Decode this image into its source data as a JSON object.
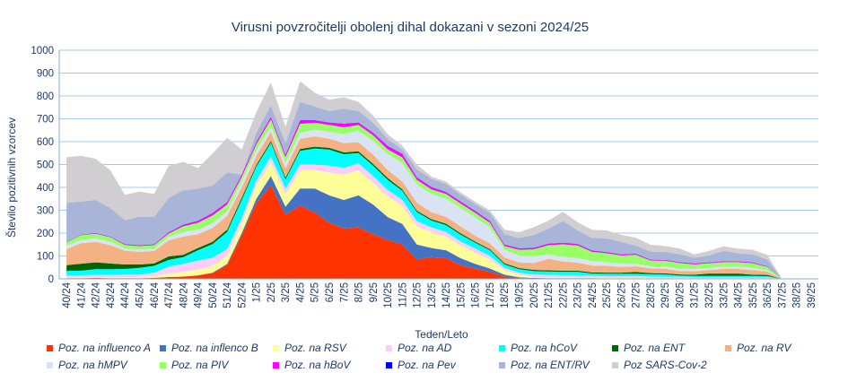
{
  "chart_data": {
    "type": "area",
    "stacked": true,
    "title": "Virusni povzročitelji  obolenj dihal dokazani v sezoni 2024/25",
    "xlabel": "Teden/Leto",
    "ylabel": "Število pozitivnih vzorcev",
    "ylim": [
      0,
      1000
    ],
    "yticks": [
      0,
      100,
      200,
      300,
      400,
      500,
      600,
      700,
      800,
      900,
      1000
    ],
    "grid": true,
    "legend_position": "bottom",
    "categories": [
      "40/24",
      "41/24",
      "42/24",
      "43/24",
      "44/24",
      "45/24",
      "46/24",
      "47/24",
      "48/24",
      "49/24",
      "50/24",
      "51/24",
      "52/24",
      "1/25",
      "2/25",
      "3/25",
      "4/25",
      "5/25",
      "6/25",
      "7/25",
      "8/25",
      "9/25",
      "10/25",
      "11/25",
      "12/25",
      "13/25",
      "14/25",
      "15/25",
      "16/25",
      "17/25",
      "18/25",
      "19/25",
      "20/25",
      "21/25",
      "22/25",
      "23/25",
      "24/25",
      "25/25",
      "26/25",
      "27/25",
      "28/25",
      "29/25",
      "30/25",
      "31/25",
      "32/25",
      "33/25",
      "34/25",
      "35/25",
      "36/25",
      "37/25",
      "38/25",
      "39/25"
    ],
    "series": [
      {
        "name": "Poz. na influenco A",
        "color": "#ff3300",
        "values": [
          3,
          3,
          4,
          3,
          3,
          3,
          4,
          8,
          10,
          15,
          25,
          60,
          190,
          330,
          410,
          280,
          320,
          290,
          245,
          220,
          225,
          195,
          170,
          150,
          85,
          95,
          90,
          60,
          45,
          30,
          10,
          3,
          2,
          2,
          2,
          2,
          2,
          1,
          1,
          1,
          1,
          1,
          1,
          1,
          1,
          1,
          1,
          1,
          1,
          0,
          0,
          0
        ]
      },
      {
        "name": "Poz. na inflenco B",
        "color": "#4472c4",
        "values": [
          0,
          0,
          0,
          0,
          0,
          0,
          0,
          0,
          0,
          0,
          2,
          5,
          10,
          20,
          40,
          35,
          75,
          105,
          120,
          125,
          140,
          130,
          100,
          90,
          65,
          40,
          35,
          30,
          20,
          15,
          8,
          4,
          2,
          1,
          1,
          1,
          1,
          1,
          1,
          1,
          1,
          1,
          1,
          1,
          1,
          1,
          1,
          1,
          1,
          0,
          0,
          0
        ]
      },
      {
        "name": "Poz. na RSV",
        "color": "#ffff99",
        "values": [
          2,
          3,
          3,
          4,
          5,
          5,
          8,
          15,
          20,
          25,
          30,
          35,
          40,
          55,
          60,
          55,
          80,
          80,
          100,
          110,
          110,
          95,
          90,
          80,
          80,
          70,
          60,
          55,
          50,
          40,
          20,
          10,
          5,
          4,
          3,
          3,
          2,
          2,
          2,
          2,
          2,
          1,
          1,
          1,
          1,
          1,
          1,
          1,
          1,
          0,
          0,
          0
        ]
      },
      {
        "name": "Poz. na AD",
        "color": "#ffccff",
        "values": [
          10,
          10,
          10,
          10,
          10,
          10,
          15,
          30,
          35,
          40,
          35,
          30,
          25,
          25,
          25,
          25,
          25,
          25,
          30,
          30,
          30,
          30,
          28,
          25,
          22,
          20,
          20,
          18,
          18,
          15,
          10,
          10,
          10,
          10,
          10,
          10,
          8,
          8,
          8,
          8,
          6,
          6,
          6,
          5,
          5,
          5,
          5,
          5,
          4,
          0,
          0,
          0
        ]
      },
      {
        "name": "Poz. na hCoV",
        "color": "#00ffff",
        "values": [
          20,
          20,
          25,
          25,
          25,
          30,
          30,
          30,
          30,
          45,
          60,
          75,
          80,
          60,
          60,
          40,
          60,
          70,
          70,
          60,
          45,
          45,
          45,
          40,
          40,
          30,
          30,
          30,
          25,
          25,
          15,
          15,
          15,
          15,
          15,
          15,
          10,
          10,
          10,
          10,
          10,
          10,
          5,
          5,
          5,
          5,
          5,
          5,
          5,
          0,
          0,
          0
        ]
      },
      {
        "name": "Poz. na ENT",
        "color": "#006600",
        "values": [
          25,
          30,
          30,
          25,
          20,
          15,
          10,
          15,
          10,
          10,
          10,
          10,
          10,
          8,
          8,
          8,
          8,
          8,
          8,
          8,
          8,
          8,
          8,
          6,
          6,
          6,
          6,
          6,
          5,
          5,
          5,
          5,
          5,
          5,
          5,
          5,
          5,
          5,
          5,
          8,
          5,
          5,
          5,
          5,
          10,
          10,
          10,
          5,
          5,
          0,
          0,
          0
        ]
      },
      {
        "name": "Poz. na RV",
        "color": "#f4b183",
        "values": [
          70,
          90,
          90,
          80,
          60,
          55,
          55,
          70,
          80,
          60,
          60,
          60,
          45,
          40,
          40,
          40,
          45,
          45,
          40,
          40,
          40,
          40,
          35,
          35,
          35,
          30,
          30,
          30,
          25,
          25,
          25,
          25,
          30,
          50,
          40,
          35,
          30,
          30,
          25,
          25,
          20,
          20,
          15,
          15,
          15,
          20,
          20,
          20,
          15,
          0,
          0,
          0
        ]
      },
      {
        "name": "Poz. na hMPV",
        "color": "#dae3f3",
        "values": [
          15,
          15,
          15,
          15,
          10,
          10,
          10,
          15,
          20,
          20,
          20,
          20,
          25,
          25,
          25,
          25,
          25,
          30,
          30,
          40,
          50,
          60,
          70,
          80,
          80,
          80,
          80,
          80,
          80,
          70,
          35,
          30,
          30,
          20,
          20,
          20,
          20,
          15,
          15,
          10,
          10,
          10,
          10,
          10,
          10,
          10,
          10,
          10,
          5,
          0,
          0,
          0
        ]
      },
      {
        "name": "Poz. na PIV",
        "color": "#99ff66",
        "values": [
          15,
          20,
          20,
          20,
          15,
          15,
          15,
          15,
          25,
          30,
          35,
          30,
          20,
          25,
          30,
          25,
          40,
          30,
          30,
          30,
          25,
          25,
          20,
          25,
          20,
          20,
          20,
          20,
          20,
          20,
          15,
          25,
          30,
          40,
          55,
          55,
          40,
          40,
          35,
          40,
          25,
          25,
          25,
          20,
          20,
          20,
          20,
          20,
          15,
          0,
          0,
          0
        ]
      },
      {
        "name": "Poz. na hBoV",
        "color": "#ff00ff",
        "values": [
          1,
          1,
          2,
          2,
          3,
          3,
          3,
          5,
          6,
          8,
          10,
          10,
          10,
          10,
          10,
          10,
          15,
          10,
          10,
          15,
          10,
          10,
          15,
          15,
          10,
          10,
          8,
          8,
          8,
          8,
          6,
          6,
          6,
          6,
          6,
          6,
          5,
          4,
          4,
          4,
          3,
          3,
          3,
          3,
          3,
          3,
          3,
          3,
          2,
          0,
          0,
          0
        ]
      },
      {
        "name": "Poz. na Pev",
        "color": "#0000ff",
        "values": [
          1,
          1,
          1,
          1,
          1,
          1,
          1,
          1,
          1,
          1,
          1,
          1,
          1,
          1,
          1,
          1,
          1,
          1,
          1,
          1,
          1,
          1,
          1,
          1,
          1,
          1,
          1,
          1,
          1,
          1,
          1,
          1,
          1,
          1,
          1,
          1,
          1,
          1,
          1,
          1,
          1,
          1,
          1,
          1,
          1,
          1,
          1,
          1,
          1,
          0,
          0,
          0
        ]
      },
      {
        "name": "Poz. na ENT/RV",
        "color": "#a9b4d9",
        "values": [
          170,
          145,
          145,
          125,
          105,
          125,
          120,
          150,
          150,
          140,
          120,
          130,
          0,
          40,
          50,
          50,
          80,
          60,
          50,
          65,
          50,
          45,
          30,
          20,
          35,
          35,
          35,
          30,
          30,
          35,
          45,
          45,
          55,
          65,
          95,
          60,
          55,
          60,
          55,
          35,
          35,
          35,
          35,
          25,
          30,
          45,
          35,
          35,
          30,
          0,
          0,
          0
        ]
      },
      {
        "name": "Poz  SARS-Cov-2",
        "color": "#d0ced0",
        "values": [
          200,
          200,
          180,
          165,
          110,
          110,
          100,
          140,
          125,
          90,
          140,
          150,
          110,
          90,
          100,
          70,
          90,
          60,
          50,
          50,
          40,
          30,
          20,
          15,
          20,
          10,
          10,
          10,
          10,
          10,
          20,
          25,
          35,
          35,
          40,
          35,
          35,
          35,
          30,
          35,
          30,
          25,
          25,
          15,
          20,
          20,
          20,
          20,
          20,
          0,
          0,
          0
        ]
      }
    ]
  }
}
